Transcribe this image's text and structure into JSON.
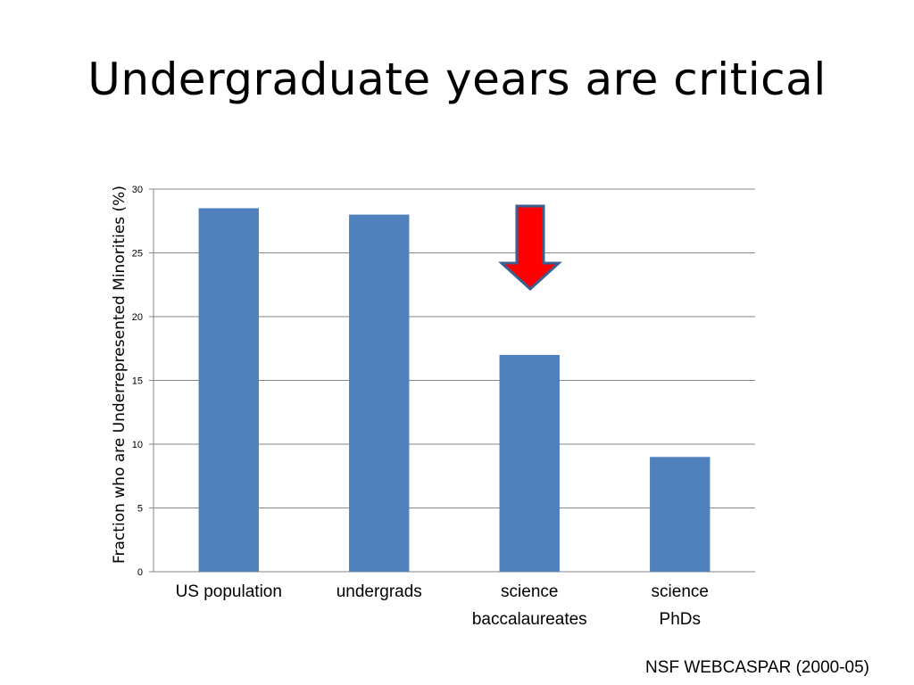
{
  "slide": {
    "title": "Undergraduate years are critical",
    "source": "NSF WEBCASPAR (2000-05)"
  },
  "chart_data": {
    "type": "bar",
    "title": "",
    "xlabel": "",
    "ylabel": "Fraction who are Underrepresented Minorities (%)",
    "categories": [
      "US population",
      "undergrads",
      "science baccalaureates",
      "science PhDs"
    ],
    "category_lines": [
      [
        "US population"
      ],
      [
        "undergrads"
      ],
      [
        "science",
        "baccalaureates"
      ],
      [
        "science",
        "PhDs"
      ]
    ],
    "values": [
      28.5,
      28,
      17,
      9
    ],
    "ylim": [
      0,
      30
    ],
    "yticks": [
      0,
      5,
      10,
      15,
      20,
      25,
      30
    ],
    "grid": true,
    "bar_color": "#4f81bd",
    "annotation": {
      "type": "down-arrow",
      "category_index": 2,
      "fill": "#ff0000",
      "stroke": "#3b5f8f"
    }
  }
}
